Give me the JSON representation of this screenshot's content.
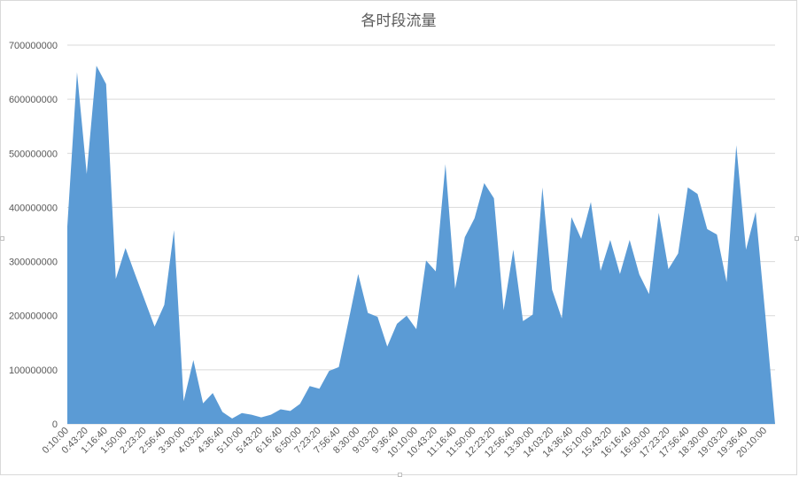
{
  "chart_data": {
    "type": "area",
    "title": "各时段流量",
    "xlabel": "",
    "ylabel": "",
    "ylim": [
      0,
      700000000
    ],
    "y_ticks": [
      "0",
      "100000000",
      "200000000",
      "300000000",
      "400000000",
      "500000000",
      "600000000",
      "700000000"
    ],
    "grid": true,
    "legend": "none",
    "color": "#5b9bd5",
    "x_tick_labels": [
      "0:10:00",
      "0:43:20",
      "1:16:40",
      "1:50:00",
      "2:23:20",
      "2:56:40",
      "3:30:00",
      "4:03:20",
      "4:36:40",
      "5:10:00",
      "5:43:20",
      "6:16:40",
      "6:50:00",
      "7:23:20",
      "7:56:40",
      "8:30:00",
      "9:03:20",
      "9:36:40",
      "10:10:00",
      "10:43:20",
      "11:16:40",
      "11:50:00",
      "12:23:20",
      "12:56:40",
      "13:30:00",
      "14:03:20",
      "14:36:40",
      "15:10:00",
      "15:43:20",
      "16:16:40",
      "16:50:00",
      "17:23:20",
      "17:56:40",
      "18:30:00",
      "19:03:20",
      "19:36:40",
      "20:10:00"
    ],
    "values": [
      365000000,
      650000000,
      462000000,
      662000000,
      628000000,
      268000000,
      325000000,
      276000000,
      228000000,
      180000000,
      220000000,
      358000000,
      42000000,
      118000000,
      38000000,
      57000000,
      22000000,
      10000000,
      20000000,
      17000000,
      12000000,
      17000000,
      27000000,
      24000000,
      37000000,
      70000000,
      65000000,
      98000000,
      105000000,
      190000000,
      277000000,
      205000000,
      198000000,
      143000000,
      185000000,
      200000000,
      175000000,
      302000000,
      282000000,
      480000000,
      250000000,
      345000000,
      380000000,
      445000000,
      417000000,
      210000000,
      322000000,
      190000000,
      202000000,
      437000000,
      248000000,
      195000000,
      382000000,
      342000000,
      410000000,
      283000000,
      340000000,
      277000000,
      340000000,
      276000000,
      240000000,
      390000000,
      286000000,
      315000000,
      437000000,
      425000000,
      360000000,
      350000000,
      262000000,
      515000000,
      322000000,
      392000000,
      200000000,
      0
    ]
  }
}
